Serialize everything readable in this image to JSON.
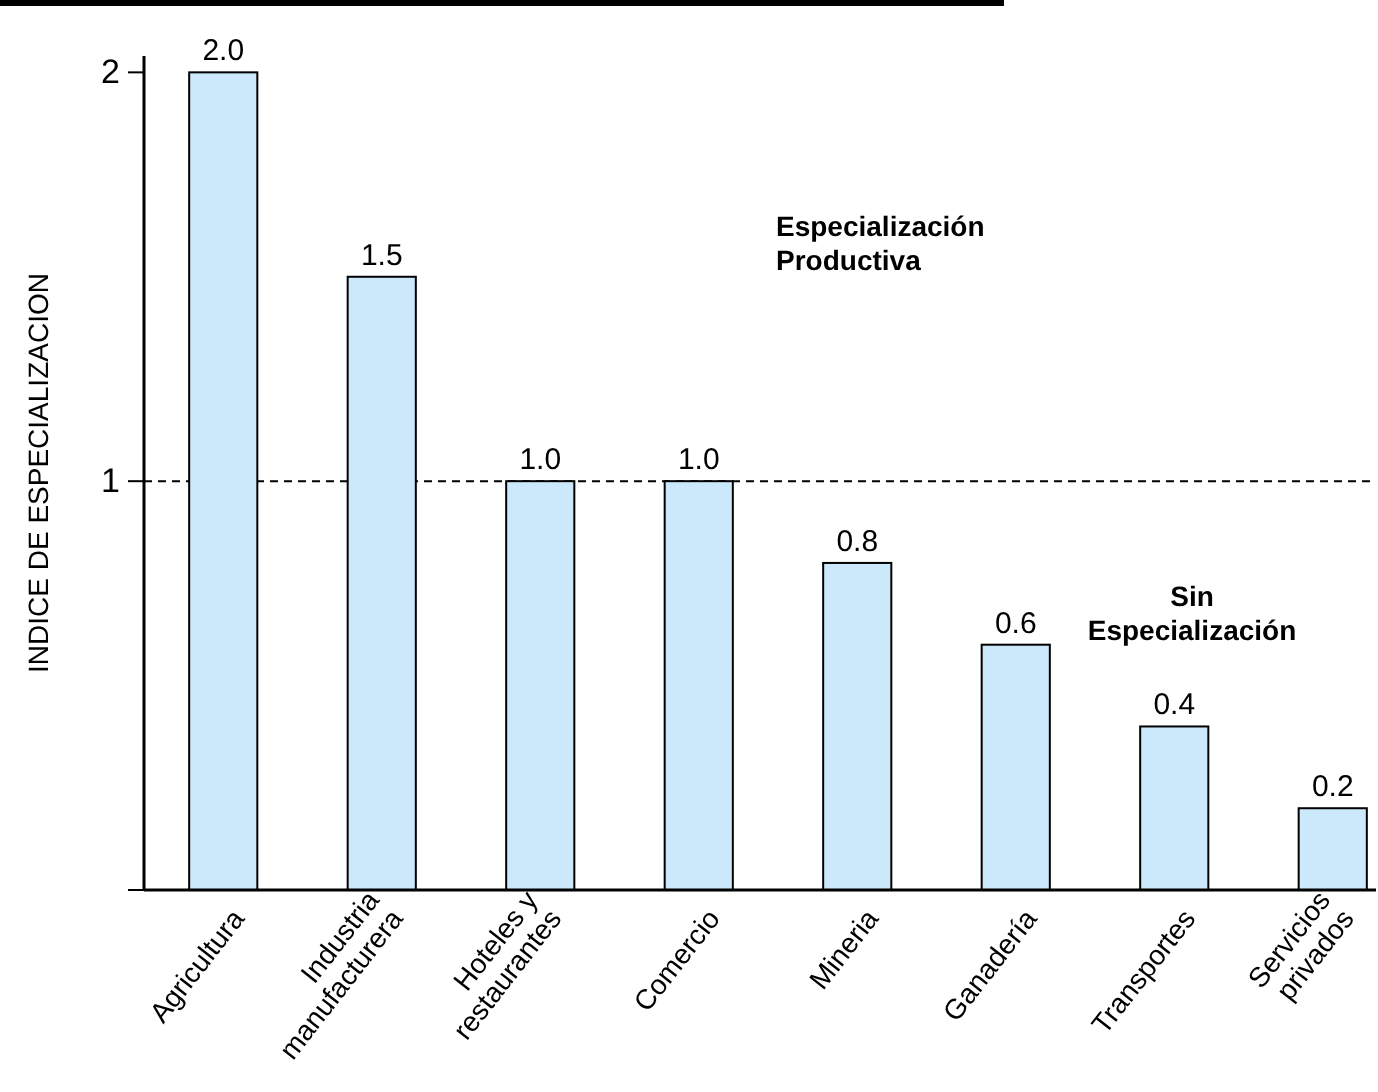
{
  "chart_data": {
    "type": "bar",
    "ylabel": "INDICE DE ESPECIALIZACION",
    "categories": [
      "Agricultura",
      "Industria manufacturera",
      "Hoteles y restaurantes",
      "Comercio",
      "Mineria",
      "Ganadería",
      "Transportes",
      "Servicios privados"
    ],
    "values": [
      2.0,
      1.5,
      1.0,
      1.0,
      0.8,
      0.6,
      0.4,
      0.2
    ],
    "value_labels": [
      "2.0",
      "1.5",
      "1.0",
      "1.0",
      "0.8",
      "0.6",
      "0.4",
      "0.2"
    ],
    "color": "#cce9fb",
    "ylim": [
      0,
      2.04
    ],
    "yticks": [
      {
        "value": 0,
        "label": null
      },
      1,
      2
    ],
    "ref_lines": [
      {
        "axis": "y",
        "value": 1,
        "line_style": "dashed",
        "color": "#000000"
      }
    ],
    "annotations": [
      "Especialización Productiva",
      "Sin Especialización"
    ],
    "grid": false
  }
}
